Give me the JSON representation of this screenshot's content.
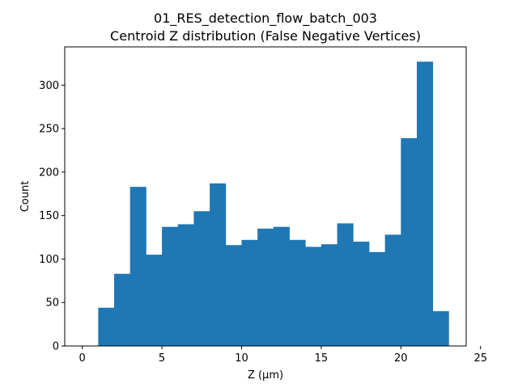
{
  "chart_data": {
    "type": "bar",
    "title": "01_RES_detection_flow_batch_003",
    "subtitle": "Centroid Z distribution (False Negative Vertices)",
    "xlabel": "Z (µm)",
    "ylabel": "Count",
    "xlim": [
      -1.1,
      24.1
    ],
    "ylim": [
      0,
      344
    ],
    "xticks": [
      0,
      5,
      10,
      15,
      20,
      25
    ],
    "yticks": [
      0,
      50,
      100,
      150,
      200,
      250,
      300
    ],
    "bin_edges": [
      1.0,
      2.0,
      3.0,
      4.0,
      5.0,
      6.0,
      7.0,
      8.0,
      9.0,
      10.0,
      11.0,
      12.0,
      13.0,
      14.0,
      15.0,
      16.0,
      17.0,
      18.0,
      19.0,
      20.0,
      21.0,
      22.0,
      23.0
    ],
    "values": [
      44,
      83,
      183,
      105,
      137,
      140,
      155,
      187,
      116,
      122,
      135,
      137,
      122,
      114,
      117,
      141,
      120,
      108,
      128,
      239,
      327,
      40
    ],
    "bar_color": "#1f77b4",
    "grid": false,
    "legend": "none"
  }
}
